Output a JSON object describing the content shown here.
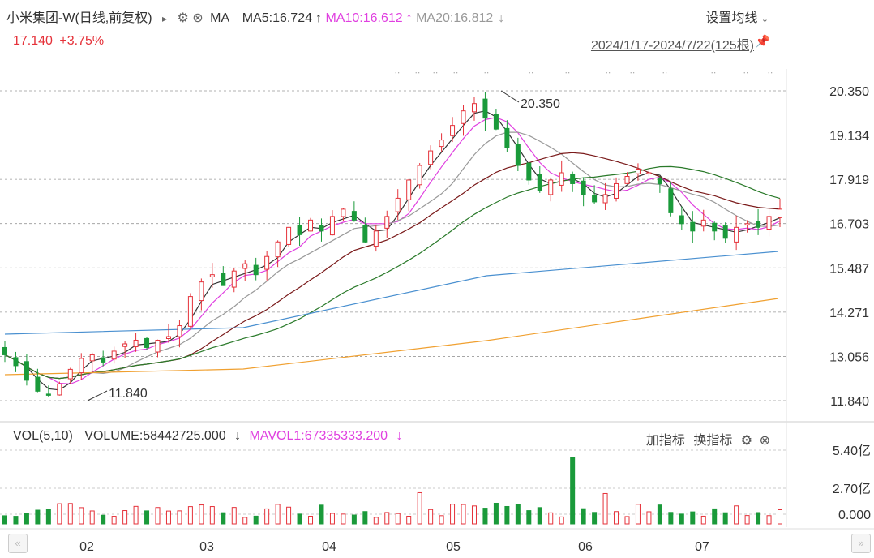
{
  "header": {
    "stock": "小米集团-W",
    "period": "(日线,前复权)",
    "arrow": "▸",
    "ma_label": "MA",
    "ma5": "MA5:16.724",
    "ma10": "MA10:16.612",
    "ma20": "MA20:16.812",
    "up_arrow": "↑",
    "down_arrow": "↓",
    "settings": "设置均线",
    "price": "17.140",
    "change": "+3.75%",
    "range": "2024/1/17-2024/7/22(125根)",
    "colors": {
      "ma5": "#333333",
      "ma10": "#e040e0",
      "ma20": "#999999",
      "up": "#e5323a",
      "down": "#1a9a3a"
    }
  },
  "volume_header": {
    "label": "VOL(5,10)",
    "volume": "VOLUME:58442725.000",
    "mavol1": "MAVOL1:67335333.200",
    "arrow": "↓",
    "add": "加指标",
    "switch": "换指标"
  },
  "chart_data": {
    "type": "candlestick",
    "y_ticks": [
      "20.350",
      "19.134",
      "17.919",
      "16.703",
      "15.487",
      "14.271",
      "13.056",
      "11.840"
    ],
    "ylim": [
      11.84,
      20.35
    ],
    "vol_ticks": [
      "5.40亿",
      "2.70亿",
      "0.000"
    ],
    "x_ticks": [
      "02",
      "03",
      "04",
      "05",
      "06",
      "07"
    ],
    "annotations": [
      {
        "text": "20.350",
        "kind": "high"
      },
      {
        "text": "11.840",
        "kind": "low"
      }
    ],
    "close_path": [
      13.1,
      12.8,
      12.4,
      12.1,
      12.0,
      12.3,
      12.7,
      13.0,
      13.1,
      12.9,
      13.2,
      13.4,
      13.5,
      13.3,
      13.5,
      13.6,
      13.9,
      14.7,
      15.1,
      15.3,
      15.0,
      15.4,
      15.6,
      15.3,
      15.8,
      16.2,
      16.6,
      16.4,
      16.8,
      16.5,
      16.9,
      17.1,
      16.8,
      16.2,
      16.5,
      16.9,
      17.4,
      17.9,
      18.3,
      18.7,
      19.0,
      19.4,
      19.8,
      20.0,
      19.6,
      19.3,
      18.8,
      18.3,
      17.9,
      17.6,
      17.9,
      18.1,
      17.8,
      17.5,
      17.3,
      17.5,
      17.8,
      18.0,
      18.2,
      18.1,
      17.8,
      17.0,
      16.7,
      16.5,
      16.8,
      16.5,
      16.3,
      16.6,
      16.7,
      16.6,
      16.9,
      17.1
    ],
    "ma_series": [
      {
        "name": "MA5",
        "color": "#333333"
      },
      {
        "name": "MA10",
        "color": "#e040e0"
      },
      {
        "name": "MA20",
        "color": "#999999"
      }
    ]
  }
}
